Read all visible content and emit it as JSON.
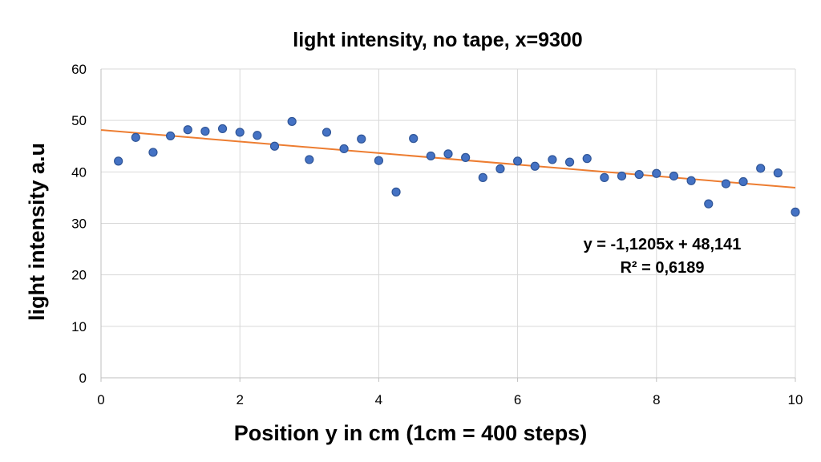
{
  "chart_data": {
    "type": "scatter",
    "title": "light intensity, no tape, x=9300",
    "xlabel": "Position y in cm (1cm = 400 steps)",
    "ylabel": "light intensity  a.u",
    "xlim": [
      0,
      10
    ],
    "ylim": [
      0,
      60
    ],
    "xticks": [
      0,
      2,
      4,
      6,
      8,
      10
    ],
    "yticks": [
      0,
      10,
      20,
      30,
      40,
      50,
      60
    ],
    "xtick_labels": [
      "0",
      "2",
      "4",
      "6",
      "8",
      "10"
    ],
    "ytick_labels": [
      "0",
      "10",
      "20",
      "30",
      "40",
      "50",
      "60"
    ],
    "grid": true,
    "series": [
      {
        "x": [
          0.25,
          0.5,
          0.75,
          1.0,
          1.25,
          1.5,
          1.75,
          2.0,
          2.25,
          2.5,
          2.75,
          3.0,
          3.25,
          3.5,
          3.75,
          4.0,
          4.25,
          4.5,
          4.75,
          5.0,
          5.25,
          5.5,
          5.75,
          6.0,
          6.25,
          6.5,
          6.75,
          7.0,
          7.25,
          7.5,
          7.75,
          8.0,
          8.25,
          8.5,
          8.75,
          9.0,
          9.25,
          9.5,
          9.75,
          10.0
        ],
        "y": [
          42.1,
          46.7,
          43.8,
          47.0,
          48.2,
          47.9,
          48.4,
          47.7,
          47.1,
          45.0,
          49.8,
          42.4,
          47.7,
          44.5,
          46.4,
          42.2,
          36.1,
          46.5,
          43.1,
          43.5,
          42.8,
          38.9,
          40.6,
          42.1,
          41.1,
          42.4,
          41.9,
          42.6,
          38.9,
          39.2,
          39.5,
          39.7,
          39.2,
          38.3,
          33.8,
          37.7,
          38.1,
          40.7,
          39.8,
          32.2
        ],
        "color": "#4472c4"
      }
    ],
    "trendline": {
      "type": "linear",
      "slope": -1.1205,
      "intercept": 48.141,
      "color": "#ed7d31",
      "equation": "y = -1,1205x + 48,141",
      "r2": "R² = 0,6189"
    }
  }
}
